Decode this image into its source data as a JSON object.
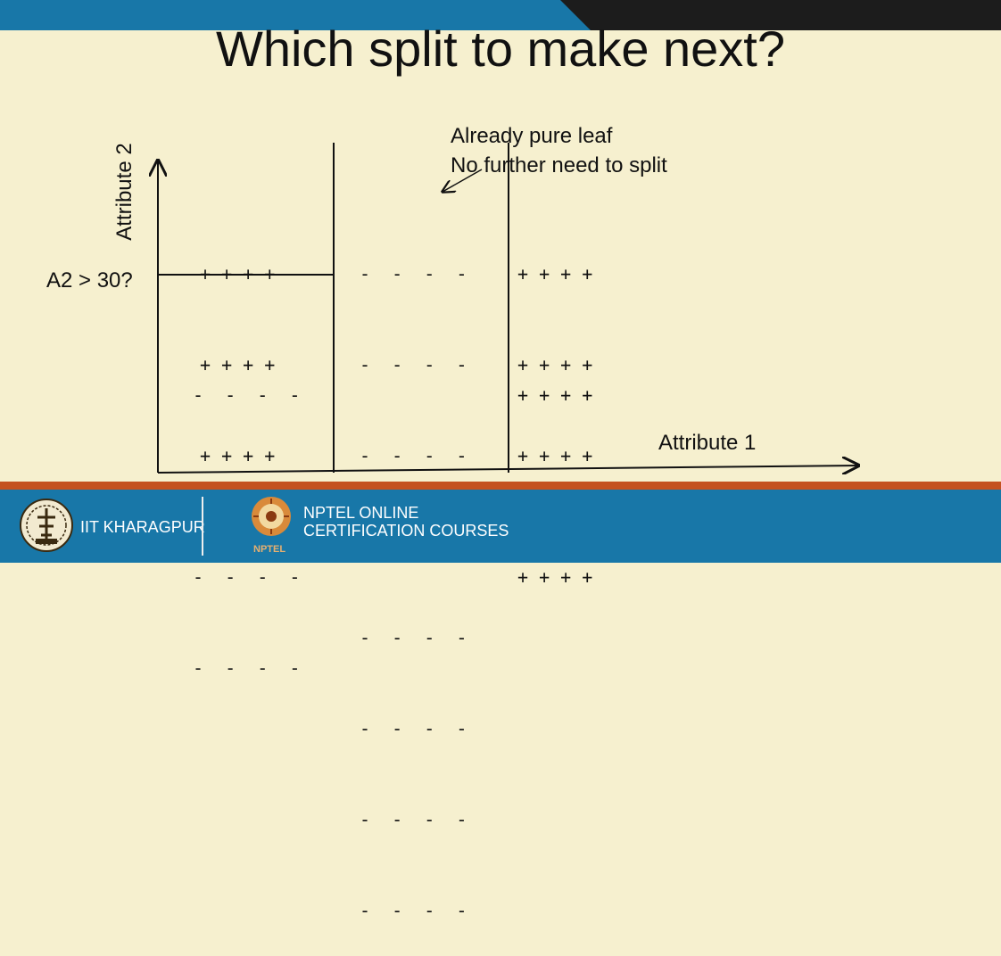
{
  "slide": {
    "title": "Which split to make next?",
    "annotation_line1": "Already pure leaf",
    "annotation_line2": "No further need to split",
    "y_axis_label": "Attribute 2",
    "x_axis_label": "Attribute 1",
    "split_label": "A2 > 30?"
  },
  "regions": {
    "left_top": [
      "+ + + +",
      "+ + + +",
      "+ + + +"
    ],
    "left_bottom": [
      "-  -  -  -",
      "-  -  -  -",
      "-  -  -  -",
      "-  -  -  -"
    ],
    "middle": [
      "-  -  -  -",
      "-  -  -  -",
      "-  -  -  -",
      "-  -  -  -",
      "-  -  -  -",
      "-  -  -  -",
      "-  -  -  -",
      "-  -  -  -"
    ],
    "right_top": [
      "+ + + +",
      "+ + + +",
      "+ + + +"
    ],
    "right_bottom": [
      "+ + + +",
      "+ + + +",
      "+ + + +"
    ]
  },
  "footer": {
    "institute": "IIT KHARAGPUR",
    "program_line1": "NPTEL ONLINE",
    "program_line2": "CERTIFICATION COURSES",
    "logo_text": "NPTEL"
  },
  "colors": {
    "background": "#f6f0cf",
    "top_bar_blue": "#1877a8",
    "top_bar_dark": "#1c1c1c",
    "footer_blue": "#1877a8",
    "footer_stripe": "#c4511f"
  }
}
